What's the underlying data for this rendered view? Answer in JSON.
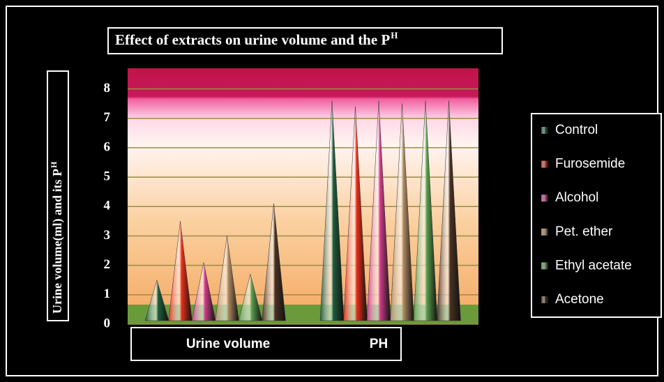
{
  "chart_data": {
    "type": "cone",
    "title": "Effect of extracts on urine volume and the P",
    "title_superscript": "H",
    "y_label": "Urine volume(ml) and its P",
    "y_label_superscript": "H",
    "categories": [
      "Urine volume",
      "PH"
    ],
    "series": [
      {
        "name": "Control",
        "color": "#1f5c3c",
        "values": [
          1.5,
          7.6
        ]
      },
      {
        "name": "Furosemide",
        "color": "#e8301a",
        "values": [
          3.5,
          7.4
        ]
      },
      {
        "name": "Alcohol",
        "color": "#d03c8a",
        "values": [
          2.1,
          7.6
        ]
      },
      {
        "name": "Pet. ether",
        "color": "#b08a62",
        "values": [
          3.0,
          7.5
        ]
      },
      {
        "name": "Ethyl acetate",
        "color": "#5a9e4c",
        "values": [
          1.7,
          7.6
        ]
      },
      {
        "name": "Acetone",
        "color": "#4a3222",
        "values": [
          4.1,
          7.6
        ]
      }
    ],
    "ylim": [
      0,
      8.7
    ],
    "yticks": [
      0,
      1,
      2,
      3,
      4,
      5,
      6,
      7,
      8
    ],
    "grid": true
  }
}
